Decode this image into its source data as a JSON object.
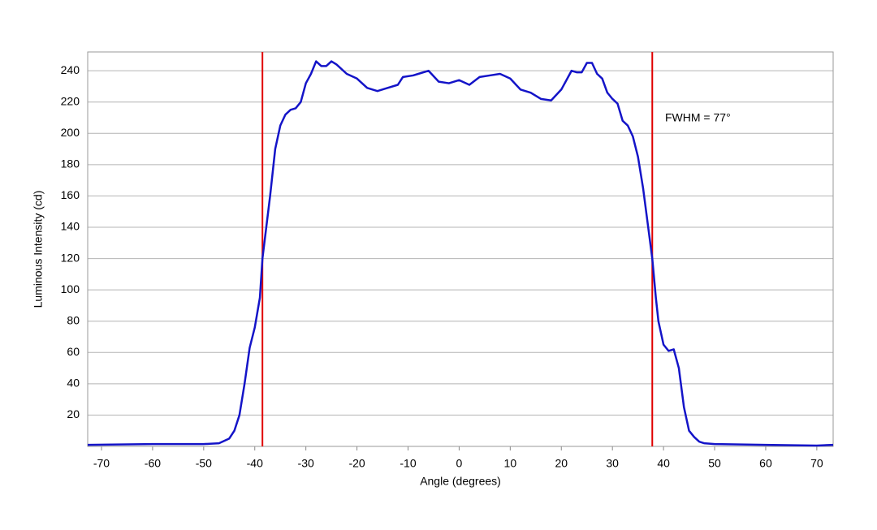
{
  "chart_data": {
    "type": "line",
    "xlabel": "Angle (degrees)",
    "ylabel": "Luminous Intensity (cd)",
    "annotation": "FWHM = 77°",
    "x": [
      -72.7,
      -60,
      -50,
      -47,
      -45,
      -44,
      -43,
      -42,
      -41,
      -40,
      -39,
      -38.5,
      -37,
      -36,
      -35,
      -34,
      -33,
      -32,
      -31,
      -30,
      -29,
      -28,
      -27,
      -26,
      -25,
      -24,
      -22,
      -20,
      -18,
      -16,
      -14,
      -12,
      -11,
      -9,
      -8,
      -6,
      -4,
      -2,
      0,
      2,
      4,
      6,
      8,
      10,
      12,
      14,
      16,
      18,
      20,
      22,
      23,
      24,
      25,
      26,
      27,
      28,
      29,
      30,
      31,
      32,
      33,
      34,
      35,
      36,
      37,
      37.8,
      38.5,
      39,
      40,
      41,
      42,
      43,
      44,
      45,
      46,
      47,
      48,
      50,
      60,
      70,
      73.2
    ],
    "series": [
      {
        "name": "Luminous Intensity",
        "color": "#1414c8",
        "values": [
          1,
          1.5,
          1.5,
          2,
          5,
          10,
          20,
          40,
          63,
          76,
          95,
          120,
          160,
          190,
          205,
          212,
          215,
          216,
          220,
          232,
          238,
          246,
          243,
          243,
          246,
          244,
          238,
          235,
          229,
          227,
          229,
          231,
          236,
          237,
          238,
          240,
          233,
          232,
          234,
          231,
          236,
          237,
          238,
          235,
          228,
          226,
          222,
          221,
          228,
          240,
          239,
          239,
          245,
          245,
          238,
          235,
          226,
          222,
          219,
          208,
          205,
          198,
          185,
          165,
          140,
          120,
          95,
          80,
          65,
          61,
          62,
          50,
          25,
          10,
          6,
          3,
          2,
          1.5,
          1,
          0.5,
          1
        ]
      }
    ],
    "vlines": [
      -38.5,
      37.8
    ],
    "vline_color": "#e00000",
    "xlim": [
      -72.7,
      73.2
    ],
    "ylim": [
      0,
      252
    ],
    "xticks": [
      -70,
      -60,
      -50,
      -40,
      -30,
      -20,
      -10,
      0,
      10,
      20,
      30,
      40,
      50,
      60,
      70
    ],
    "yticks": [
      20,
      40,
      60,
      80,
      100,
      120,
      140,
      160,
      180,
      200,
      220,
      240
    ],
    "grid": true
  }
}
